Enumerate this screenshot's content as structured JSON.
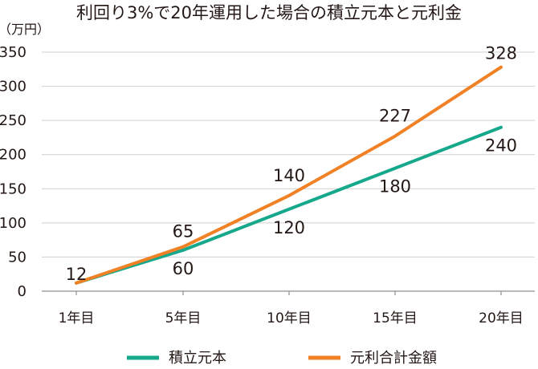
{
  "chart_data": {
    "type": "line",
    "title": "利回り3%で20年運用した場合の積立元本と元利金",
    "unit_label": "（万円）",
    "categories": [
      "1年目",
      "5年目",
      "10年目",
      "15年目",
      "20年目"
    ],
    "yticks": [
      "0",
      "50",
      "100",
      "150",
      "200",
      "250",
      "300",
      "350"
    ],
    "ylim": [
      0,
      350
    ],
    "grid": true,
    "legend_position": "bottom",
    "series": [
      {
        "name": "積立元本",
        "color": "#15a88b",
        "values": [
          12,
          60,
          120,
          180,
          240
        ],
        "labels": [
          "12",
          "60",
          "120",
          "180",
          "240"
        ]
      },
      {
        "name": "元利合計金額",
        "color": "#f08125",
        "values": [
          12,
          65,
          140,
          227,
          328
        ],
        "labels": [
          "12",
          "65",
          "140",
          "227",
          "328"
        ]
      }
    ]
  }
}
